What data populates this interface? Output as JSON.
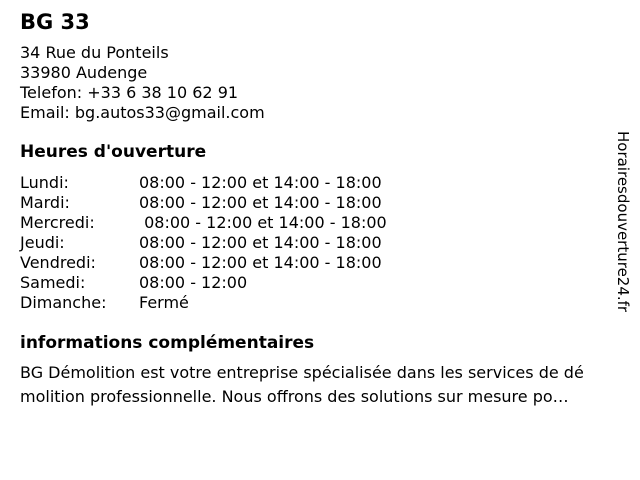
{
  "page": {
    "background_color": "#ffffff",
    "text_color": "#000000"
  },
  "business": {
    "name": "BG 33",
    "address_street": "34 Rue du Ponteils",
    "address_city": "33980 Audenge",
    "phone_label": "Telefon:",
    "phone": "+33 6 38 10 62 91",
    "email_label": "Email:",
    "email": "bg.autos33@gmail.com"
  },
  "hours": {
    "heading": "Heures d'ouverture",
    "rows": [
      {
        "day": "Lundi:",
        "hours": "08:00 - 12:00 et 14:00 - 18:00"
      },
      {
        "day": "Mardi:",
        "hours": "08:00 - 12:00 et 14:00 - 18:00"
      },
      {
        "day": "Mercredi:",
        "hours": " 08:00 - 12:00 et 14:00 - 18:00"
      },
      {
        "day": "Jeudi:",
        "hours": "08:00 - 12:00 et 14:00 - 18:00"
      },
      {
        "day": "Vendredi:",
        "hours": "08:00 - 12:00 et 14:00 - 18:00"
      },
      {
        "day": "Samedi:",
        "hours": "08:00 - 12:00"
      },
      {
        "day": "Dimanche:",
        "hours": "Fermé"
      }
    ]
  },
  "info": {
    "heading": "informations complémentaires",
    "description_lines": [
      "BG Démolition est votre entreprise spécialisée dans les services de dé",
      "molition professionnelle. Nous offrons des solutions sur mesure po…"
    ]
  },
  "watermark": {
    "site": "Horairesdouverture24.fr"
  }
}
